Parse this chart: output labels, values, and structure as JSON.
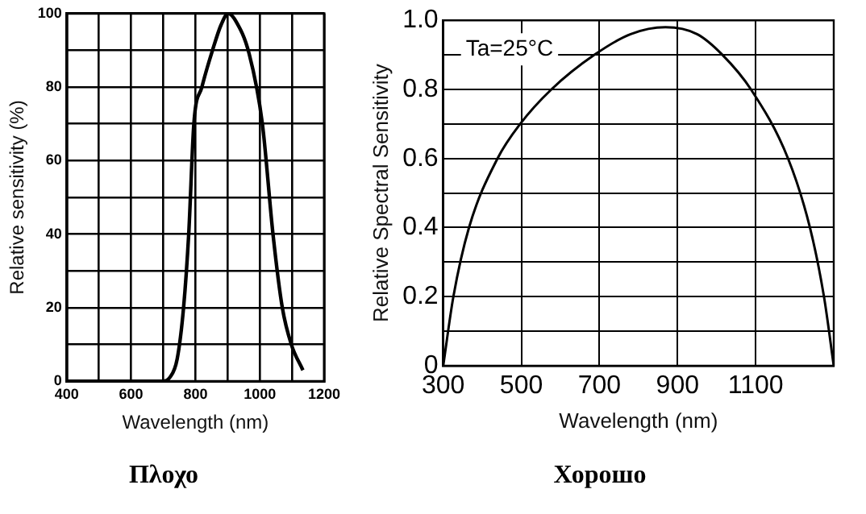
{
  "chart_data": [
    {
      "type": "line",
      "title": "Πλοχο",
      "xlabel": "Wavelength (nm)",
      "ylabel": "Relative sensitivity (%)",
      "xlim": [
        400,
        1200
      ],
      "xticks": [
        400,
        {
          "value": 500,
          "label": null
        },
        600,
        {
          "value": 700,
          "label": null
        },
        800,
        {
          "value": 900,
          "label": null
        },
        1000,
        {
          "value": 1100,
          "label": null
        },
        1200
      ],
      "ylim": [
        0,
        100
      ],
      "yticks": [
        0,
        {
          "value": 10,
          "label": null
        },
        20,
        {
          "value": 30,
          "label": null
        },
        40,
        {
          "value": 50,
          "label": null
        },
        60,
        {
          "value": 70,
          "label": null
        },
        80,
        {
          "value": 90,
          "label": null
        },
        100
      ],
      "grid": true,
      "legend": false,
      "marker": "none",
      "line_style": "solid",
      "series": [
        {
          "color": "#000000",
          "x": [
            400,
            500,
            600,
            698,
            720,
            743,
            763,
            779,
            795,
            820,
            853,
            880,
            902,
            925,
            967,
            1008,
            1041,
            1070,
            1098,
            1134
          ],
          "values": [
            0,
            0,
            0,
            0,
            1,
            6,
            20,
            40,
            70,
            80,
            90,
            97,
            100,
            98,
            89,
            70,
            40,
            20,
            10,
            3
          ]
        }
      ]
    },
    {
      "type": "line",
      "title": "Хорошо",
      "xlabel": "Wavelength (nm)",
      "ylabel": "Relative Spectral Sensitivity",
      "annotations": [
        "Ta=25°C"
      ],
      "xlim": [
        300,
        1300
      ],
      "xticks": [
        300,
        500,
        700,
        900,
        1100
      ],
      "ylim": [
        0,
        1.0
      ],
      "yticks": [
        0,
        {
          "value": 0.1,
          "label": null
        },
        {
          "value": 0.2,
          "label": "0.2"
        },
        {
          "value": 0.3,
          "label": null
        },
        {
          "value": 0.4,
          "label": "0.4"
        },
        {
          "value": 0.5,
          "label": null
        },
        {
          "value": 0.6,
          "label": "0.6"
        },
        {
          "value": 0.7,
          "label": null
        },
        {
          "value": 0.8,
          "label": "0.8"
        },
        {
          "value": 0.9,
          "label": null
        },
        {
          "value": 1.0,
          "label": "1.0"
        }
      ],
      "grid": true,
      "legend": false,
      "marker": "none",
      "line_style": "solid",
      "series": [
        {
          "color": "#000000",
          "x": [
            300,
            326,
            366,
            439,
            497,
            577,
            687,
            780,
            869,
            950,
            1015,
            1088,
            1183,
            1239,
            1275,
            1300
          ],
          "values": [
            0,
            0.2,
            0.4,
            0.6,
            0.7,
            0.8,
            0.9,
            0.96,
            0.98,
            0.96,
            0.9,
            0.8,
            0.6,
            0.4,
            0.2,
            0
          ]
        }
      ]
    }
  ]
}
